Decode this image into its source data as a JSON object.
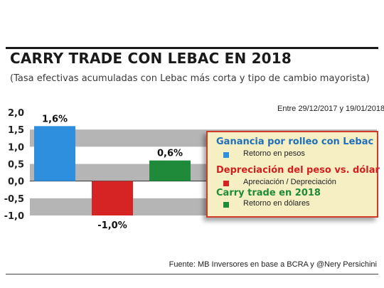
{
  "header": {
    "title": "CARRY TRADE CON LEBAC EN 2018",
    "subtitle": "(Tasa efectivas acumuladas con Lebac más corta y tipo de cambio mayorista)",
    "date_range": "Entre 29/12/2017 y 19/01/2018"
  },
  "legend": {
    "groups": [
      {
        "heading": "Ganancia por  rolleo con Lebac",
        "label": "Retorno en pesos",
        "heading_color": "#1f6fb8",
        "swatch_color": "#2f8fdf"
      },
      {
        "heading": "Depreciación del peso vs. dólar",
        "label": "Apreciación / Depreciación",
        "heading_color": "#d21f1f",
        "swatch_color": "#d62424"
      },
      {
        "heading": "Carry trade en 2018",
        "label": "Retorno en dólares",
        "heading_color": "#1e8a3a",
        "swatch_color": "#1e8a3a"
      }
    ]
  },
  "source": "Fuente: MB Inversores en base a BCRA y @Nery Persichini",
  "chart_data": {
    "type": "bar",
    "categories": [
      "Retorno en pesos",
      "Apreciación / Depreciación",
      "Retorno en dólares"
    ],
    "values": [
      1.6,
      -1.0,
      0.6
    ],
    "value_labels": [
      "1,6%",
      "-1,0%",
      "0,6%"
    ],
    "colors": [
      "#2f8fdf",
      "#d62424",
      "#1e8a3a"
    ],
    "ylim": [
      -1.0,
      2.0
    ],
    "yticks": [
      2.0,
      1.5,
      1.0,
      0.5,
      0.0,
      -0.5,
      -1.0
    ],
    "ytick_labels": [
      "2,0",
      "1,5",
      "1,0",
      "0,5",
      "0,0",
      "-0,5",
      "-1,0"
    ],
    "grid": "alternating bands"
  }
}
